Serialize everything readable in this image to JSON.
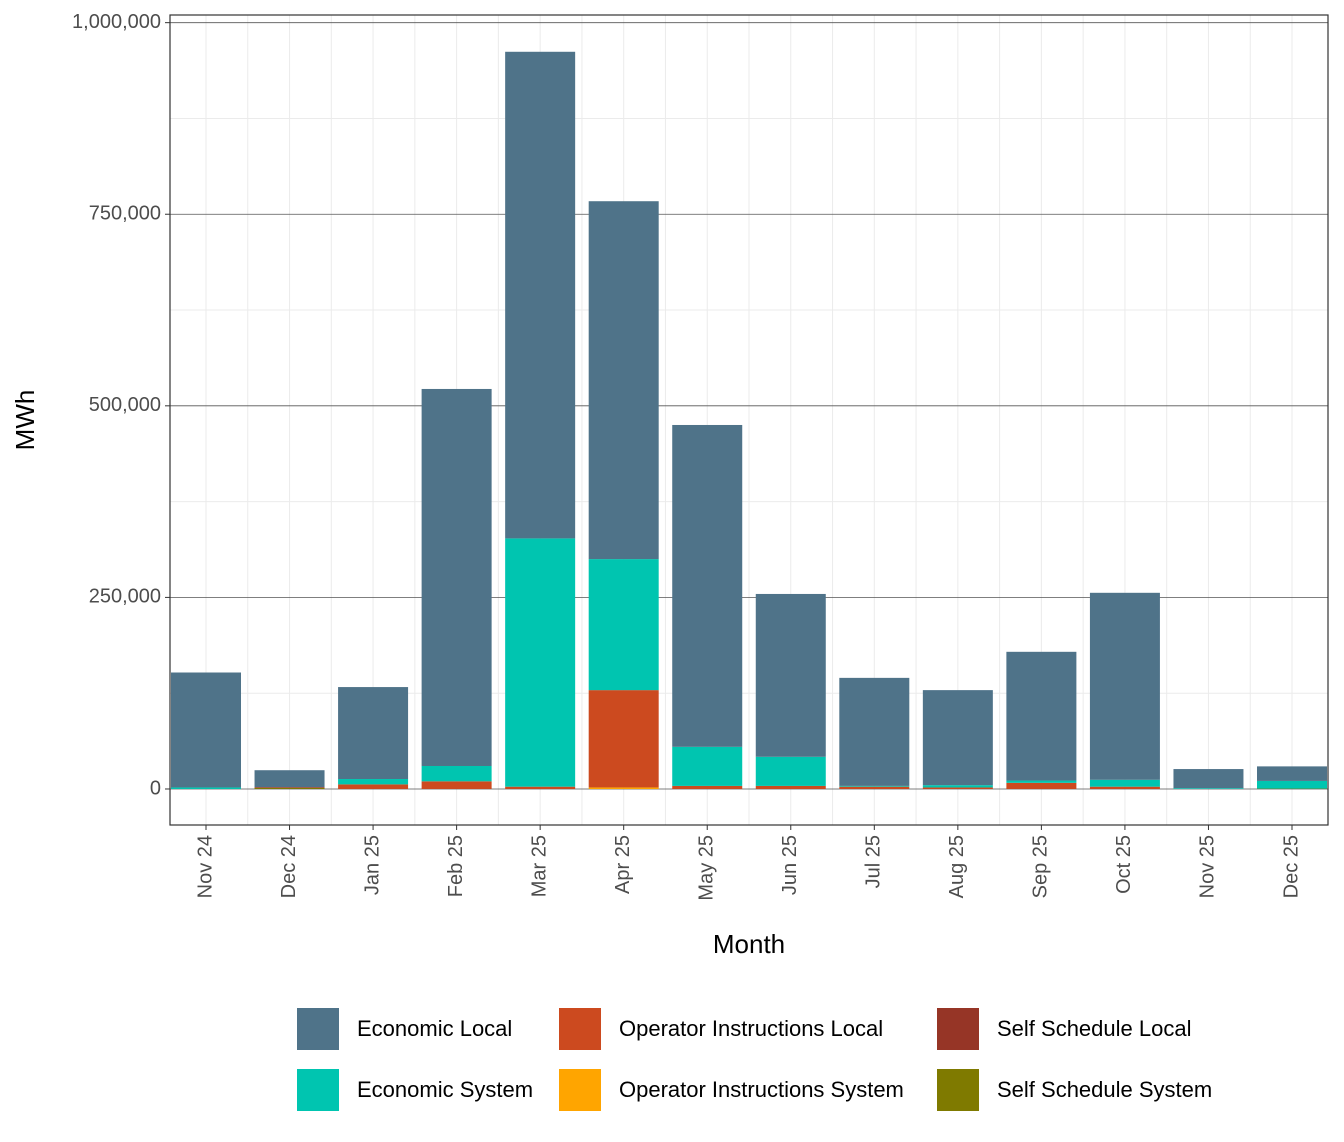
{
  "chart_data": {
    "type": "stacked_bar",
    "x_label": "Month",
    "y_label": "MWh",
    "categories": [
      "Nov 24",
      "Dec 24",
      "Jan 25",
      "Feb 25",
      "Mar 25",
      "Apr 25",
      "May 25",
      "Jun 25",
      "Jul 25",
      "Aug 25",
      "Sep 25",
      "Oct 25",
      "Nov 25",
      "Dec 25"
    ],
    "series": [
      {
        "name": "Economic Local",
        "color": "#4f7389",
        "values": [
          150000,
          22000,
          120000,
          492000,
          635000,
          467000,
          420000,
          212500,
          141000,
          124000,
          168000,
          244000,
          25000,
          19000
        ]
      },
      {
        "name": "Economic System",
        "color": "#00c5b0",
        "values": [
          2000,
          0,
          7000,
          20000,
          324000,
          171000,
          51000,
          38000,
          1000,
          3000,
          3000,
          9000,
          1000,
          10000
        ]
      },
      {
        "name": "Operator Instructions Local",
        "color": "#cc4a1f",
        "values": [
          0,
          0,
          6000,
          10000,
          3000,
          127000,
          4000,
          4000,
          3000,
          2000,
          8000,
          3000,
          0,
          0
        ]
      },
      {
        "name": "Operator Instructions System",
        "color": "#ffa500",
        "values": [
          0,
          0,
          0,
          0,
          0,
          2000,
          0,
          0,
          0,
          0,
          0,
          0,
          0,
          0
        ]
      },
      {
        "name": "Self Schedule Local",
        "color": "#963526",
        "values": [
          0,
          1000,
          0,
          0,
          0,
          0,
          0,
          0,
          0,
          0,
          0,
          0,
          0,
          0
        ]
      },
      {
        "name": "Self Schedule System",
        "color": "#7f7a00",
        "values": [
          0,
          1500,
          0,
          0,
          0,
          0,
          0,
          0,
          0,
          0,
          0,
          0,
          0,
          500
        ]
      }
    ],
    "ylim": [
      -47000,
      1010000
    ],
    "yticks": [
      {
        "value": 0,
        "label": "0"
      },
      {
        "value": 250000,
        "label": "250,000"
      },
      {
        "value": 500000,
        "label": "500,000"
      },
      {
        "value": 750000,
        "label": "750,000"
      },
      {
        "value": 1000000,
        "label": "1,000,000"
      }
    ],
    "grid": true
  }
}
